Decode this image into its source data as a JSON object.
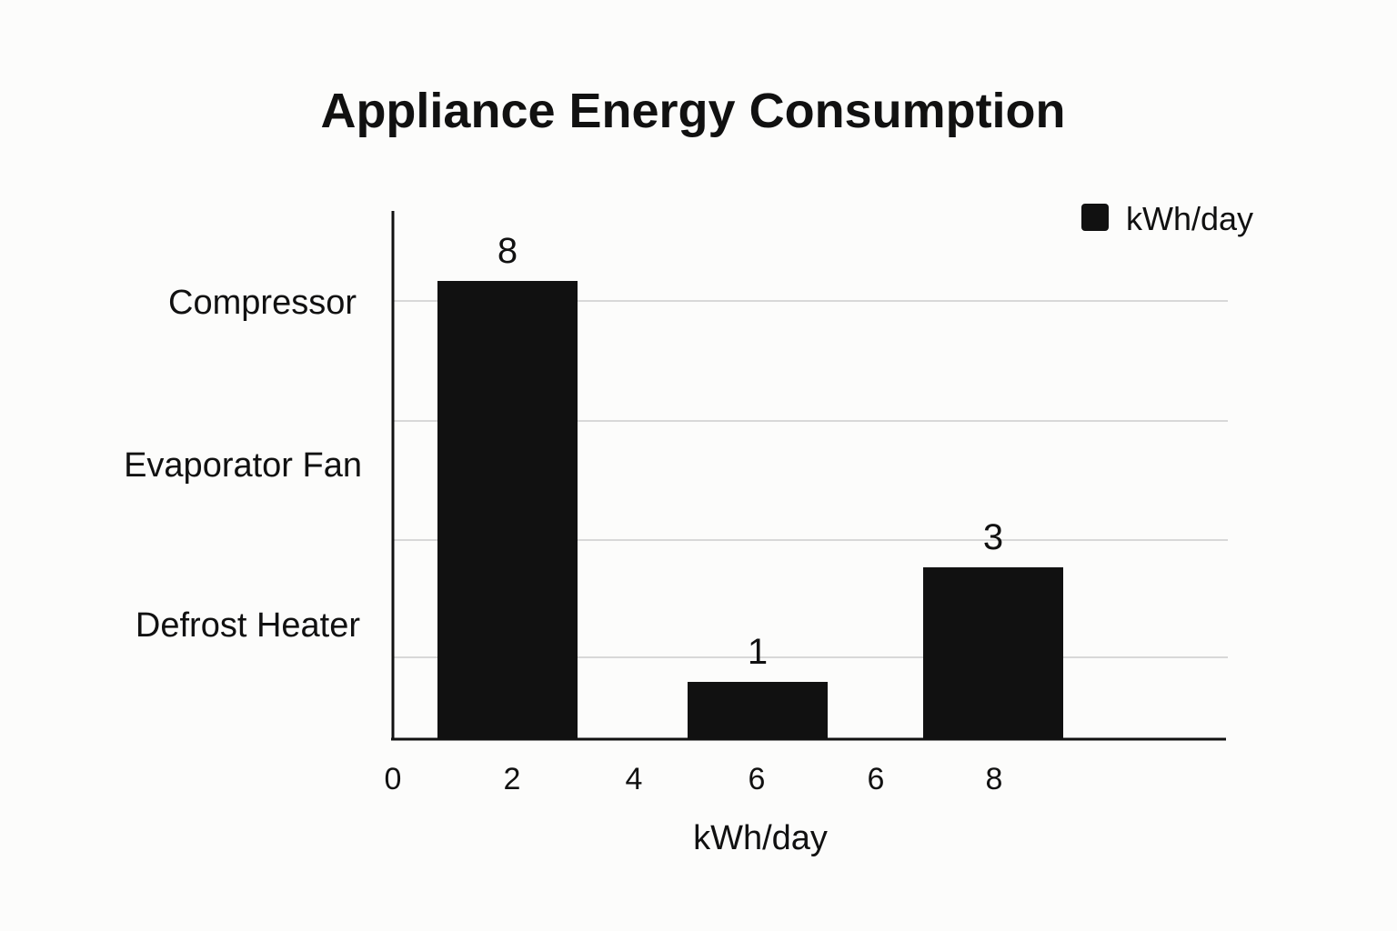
{
  "chart_data": {
    "type": "bar",
    "title": "Appliance Energy Consumption",
    "xlabel": "kWh/day",
    "ylabel": "",
    "y_category_labels": [
      "Compressor",
      "Evaporator Fan",
      "Defrost Heater"
    ],
    "x_tick_labels": [
      "0",
      "2",
      "4",
      "6",
      "6",
      "8"
    ],
    "series": [
      {
        "name": "kWh/day",
        "color": "#111111",
        "bars": [
          {
            "x": 2,
            "value": 8,
            "label": "8"
          },
          {
            "x": 6,
            "value": 1,
            "label": "1"
          },
          {
            "x": 8,
            "value": 3,
            "label": "3"
          }
        ]
      }
    ],
    "grid": true,
    "legend": {
      "position": "top-right",
      "entries": [
        "kWh/day"
      ]
    }
  }
}
